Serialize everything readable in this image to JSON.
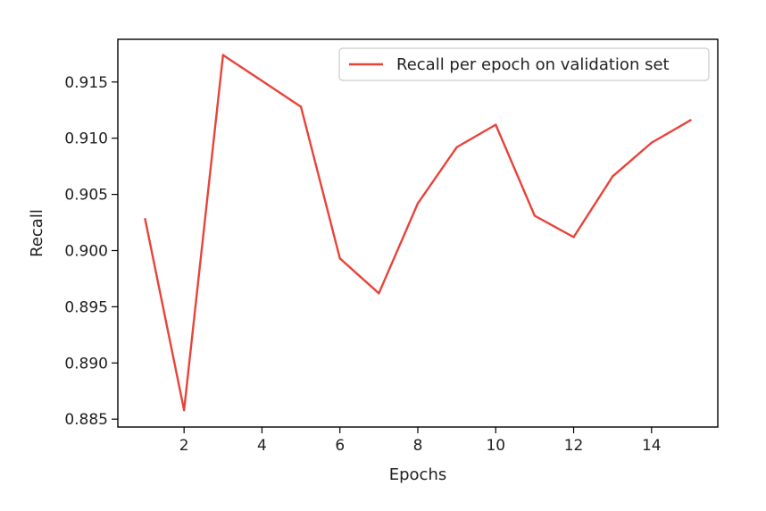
{
  "chart_data": {
    "type": "line",
    "title": "",
    "xlabel": "Epochs",
    "ylabel": "Recall",
    "xlim": [
      0.3,
      15.7
    ],
    "ylim": [
      0.8843,
      0.9188
    ],
    "xticks": [
      2,
      4,
      6,
      8,
      10,
      12,
      14
    ],
    "xtick_labels": [
      "2",
      "4",
      "6",
      "8",
      "10",
      "12",
      "14"
    ],
    "yticks": [
      0.885,
      0.89,
      0.895,
      0.9,
      0.905,
      0.91,
      0.915
    ],
    "ytick_labels": [
      "0.885",
      "0.890",
      "0.895",
      "0.900",
      "0.905",
      "0.910",
      "0.915"
    ],
    "grid": false,
    "legend_position": "top-right",
    "series": [
      {
        "name": "Recall per epoch on validation set",
        "color": "#e8433a",
        "x": [
          1,
          2,
          3,
          4,
          5,
          6,
          7,
          8,
          9,
          10,
          11,
          12,
          13,
          14,
          15
        ],
        "values": [
          0.9028,
          0.8858,
          0.9174,
          0.9151,
          0.9128,
          0.8993,
          0.8962,
          0.9042,
          0.9092,
          0.9112,
          0.9031,
          0.9012,
          0.9066,
          0.9096,
          0.9116
        ]
      }
    ]
  }
}
